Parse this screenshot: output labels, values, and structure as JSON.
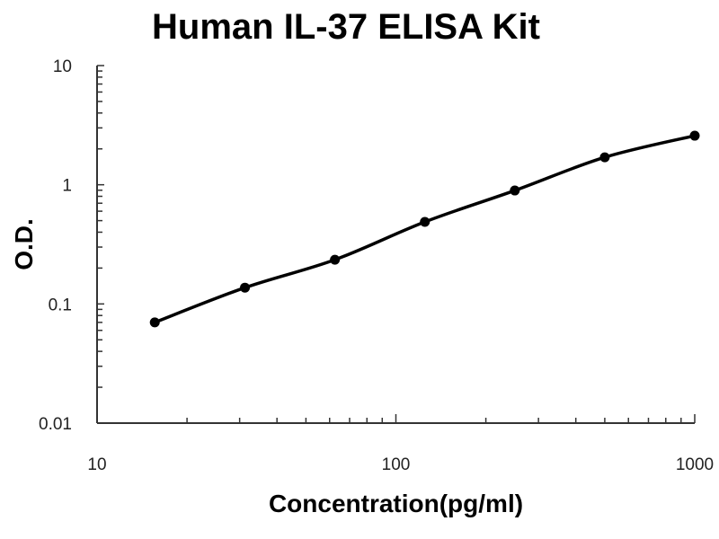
{
  "chart_data": {
    "type": "line",
    "title": "Human IL-37 ELISA Kit",
    "xlabel": "Concentration(pg/ml)",
    "ylabel": "O.D.",
    "xscale": "log",
    "yscale": "log",
    "xlim": [
      10,
      1000
    ],
    "ylim": [
      0.01,
      10
    ],
    "xticks": [
      "10",
      "100",
      "1000"
    ],
    "yticks": [
      "0.01",
      "0.1",
      "1",
      "10"
    ],
    "grid": false,
    "series": [
      {
        "x": [
          15.6,
          31.25,
          62.5,
          125,
          250,
          500,
          1000
        ],
        "y": [
          0.07,
          0.137,
          0.235,
          0.488,
          0.895,
          1.7,
          2.58
        ],
        "color": "#000000",
        "marker": "circle",
        "line": "smooth"
      }
    ]
  }
}
